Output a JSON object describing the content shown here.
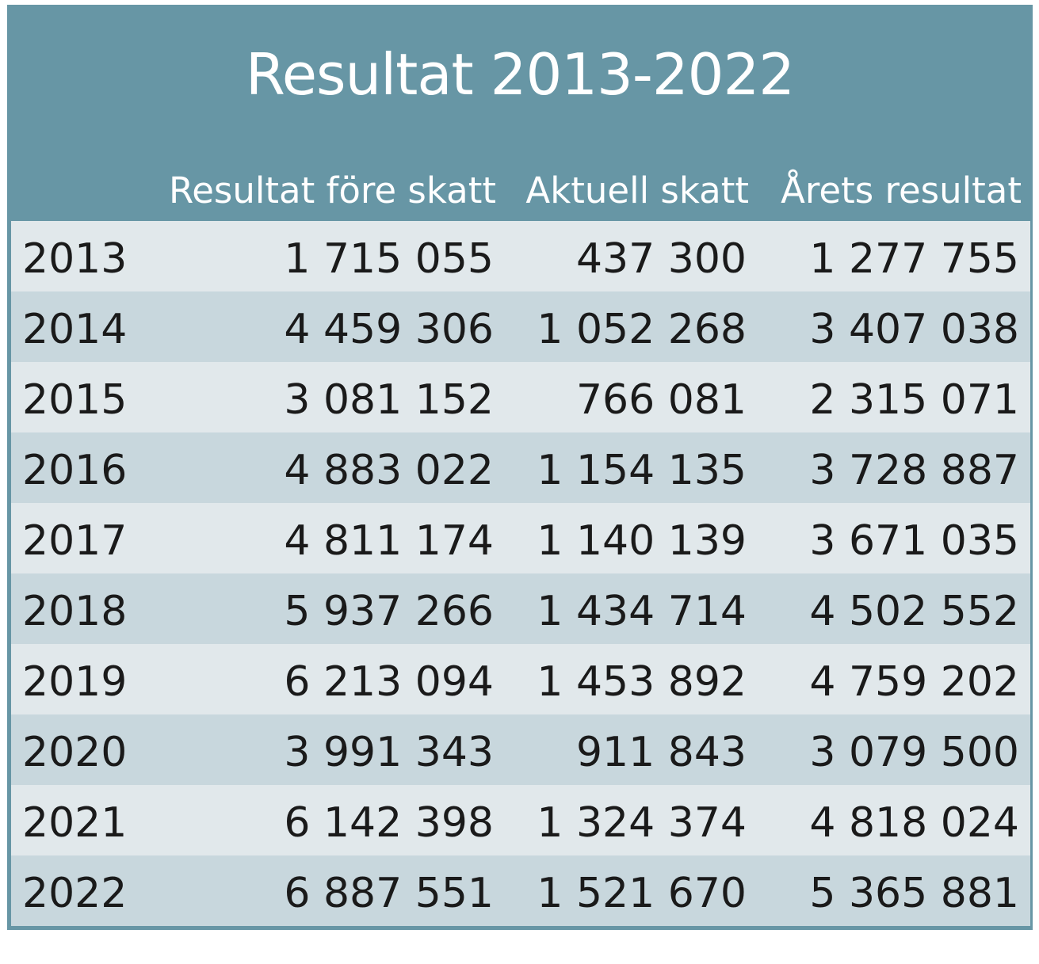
{
  "title": "Resultat 2013-2022",
  "columns": [
    "",
    "Resultat före skatt",
    "Aktuell skatt",
    "Årets resultat"
  ],
  "rows": [
    [
      "2013",
      "1 715 055",
      "437 300",
      "1 277 755"
    ],
    [
      "2014",
      "4 459 306",
      "1 052 268",
      "3 407 038"
    ],
    [
      "2015",
      "3 081 152",
      "766 081",
      "2 315 071"
    ],
    [
      "2016",
      "4 883 022",
      "1 154 135",
      "3 728 887"
    ],
    [
      "2017",
      "4 811 174",
      "1 140 139",
      "3 671 035"
    ],
    [
      "2018",
      "5 937 266",
      "1 434 714",
      "4 502 552"
    ],
    [
      "2019",
      "6 213 094",
      "1 453 892",
      "4 759 202"
    ],
    [
      "2020",
      "3 991 343",
      "911 843",
      "3 079 500"
    ],
    [
      "2021",
      "6 142 398",
      "1 324 374",
      "4 818 024"
    ],
    [
      "2022",
      "6 887 551",
      "1 521 670",
      "5 365 881"
    ]
  ],
  "colors": {
    "header_bg": "#6796a5",
    "row_light": "#e1e8eb",
    "row_dark": "#c8d7dd",
    "header_text": "#ffffff",
    "body_text": "#1a1a1a"
  }
}
